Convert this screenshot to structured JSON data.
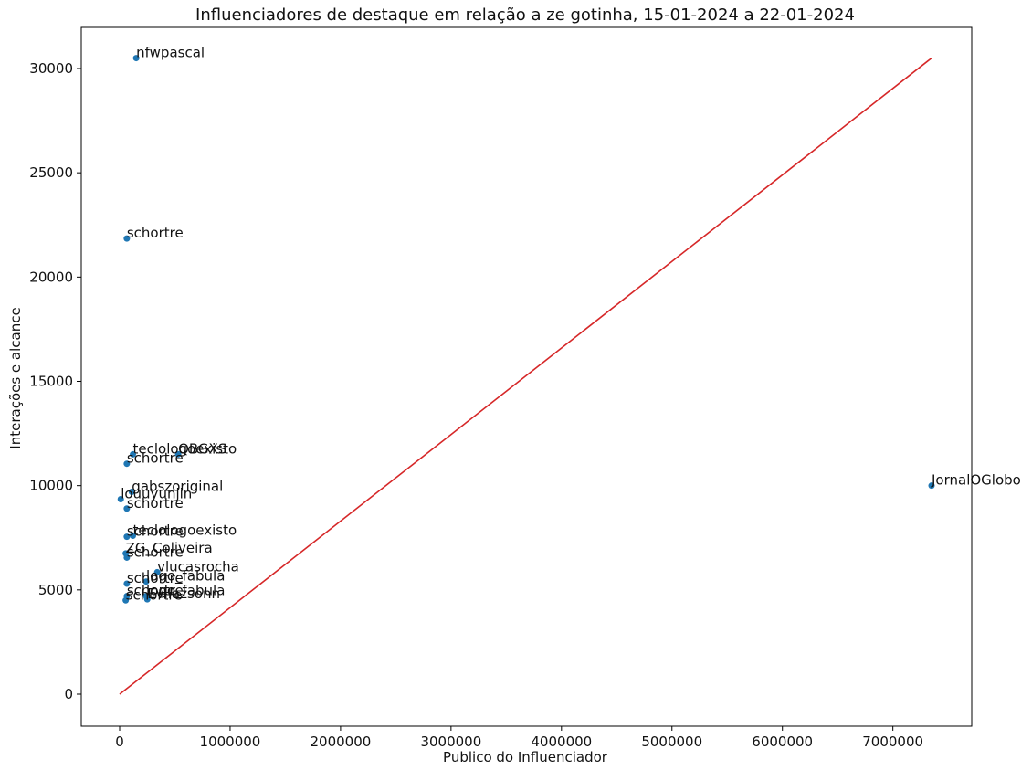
{
  "chart_data": {
    "type": "scatter",
    "title": "Influenciadores de destaque em relação a ze gotinha, 15-01-2024 a 22-01-2024",
    "xlabel": "Publico do Influenciador",
    "ylabel": "Interações e alcance",
    "xlim": [
      -370000,
      7720000
    ],
    "ylim": [
      -1550000,
      32100
    ],
    "xlim_note": "",
    "x_ticks": [
      0,
      1000000,
      2000000,
      3000000,
      4000000,
      5000000,
      6000000,
      7000000
    ],
    "y_ticks": [
      0,
      5000,
      10000,
      15000,
      20000,
      25000,
      30000
    ],
    "grid": false,
    "point_color": "#1f77b4",
    "line_color": "#d62728",
    "trend_line": {
      "x": [
        0,
        7350000
      ],
      "y": [
        0,
        30500
      ]
    },
    "points": [
      {
        "label": "nfwpascal",
        "x": 150000,
        "y": 30500
      },
      {
        "label": "schortre",
        "x": 65000,
        "y": 21850
      },
      {
        "label": "teclologoexisto",
        "x": 120000,
        "y": 11500
      },
      {
        "label": "QBGXS",
        "x": 530000,
        "y": 11500
      },
      {
        "label": "schortre",
        "x": 65000,
        "y": 11050
      },
      {
        "label": "gabszoriginal",
        "x": 110000,
        "y": 9700
      },
      {
        "label": "louuyunjin",
        "x": 10000,
        "y": 9350
      },
      {
        "label": "schortre",
        "x": 65000,
        "y": 8900
      },
      {
        "label": "teclologoexisto",
        "x": 120000,
        "y": 7600
      },
      {
        "label": "schortre",
        "x": 65000,
        "y": 7550
      },
      {
        "label": "ZG_Coliveira",
        "x": 55000,
        "y": 6750
      },
      {
        "label": "schortre",
        "x": 65000,
        "y": 6550
      },
      {
        "label": "vlucasrocha",
        "x": 340000,
        "y": 5850
      },
      {
        "label": "logo_fabula",
        "x": 240000,
        "y": 5400
      },
      {
        "label": "schortre",
        "x": 65000,
        "y": 5300
      },
      {
        "label": "logo_fabula",
        "x": 240000,
        "y": 4700
      },
      {
        "label": "schortre",
        "x": 65000,
        "y": 4700
      },
      {
        "label": "Evilazsonn",
        "x": 250000,
        "y": 4550
      },
      {
        "label": "schortre",
        "x": 55000,
        "y": 4500
      },
      {
        "label": "JornalOGlobo",
        "x": 7350000,
        "y": 10000
      }
    ]
  }
}
